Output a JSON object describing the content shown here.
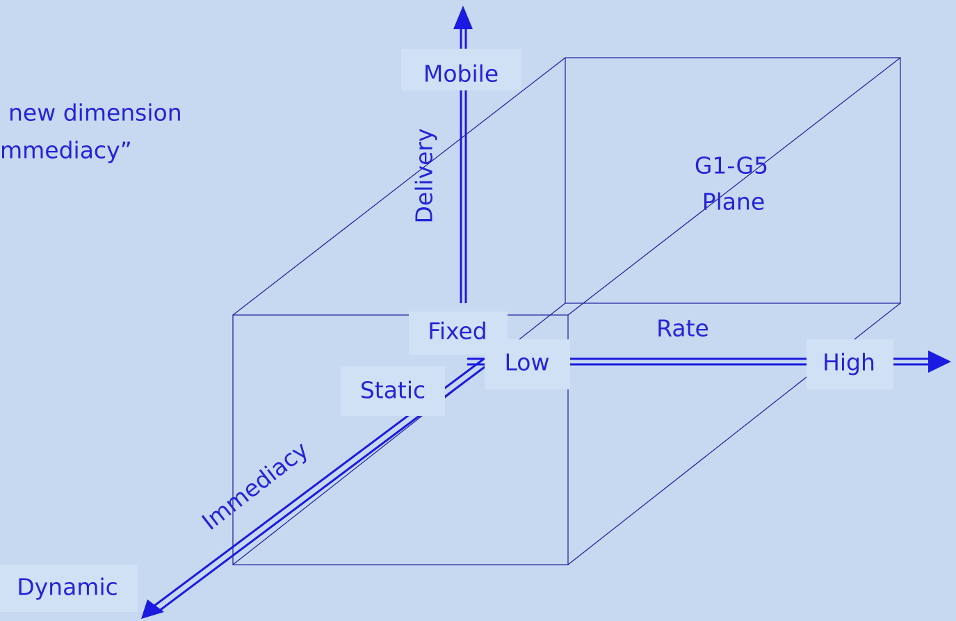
{
  "intro": {
    "lines": [
      "new dimension",
      "mmediacy”"
    ]
  },
  "axes": {
    "delivery": {
      "name": "Delivery",
      "low": "Fixed",
      "high": "Mobile"
    },
    "rate": {
      "name": "Rate",
      "low": "Low",
      "high": "High"
    },
    "immediacy": {
      "name": "Immediacy",
      "low": "Static",
      "high": "Dynamic"
    }
  },
  "plane": {
    "lines": [
      "G1-G5",
      "Plane"
    ]
  }
}
